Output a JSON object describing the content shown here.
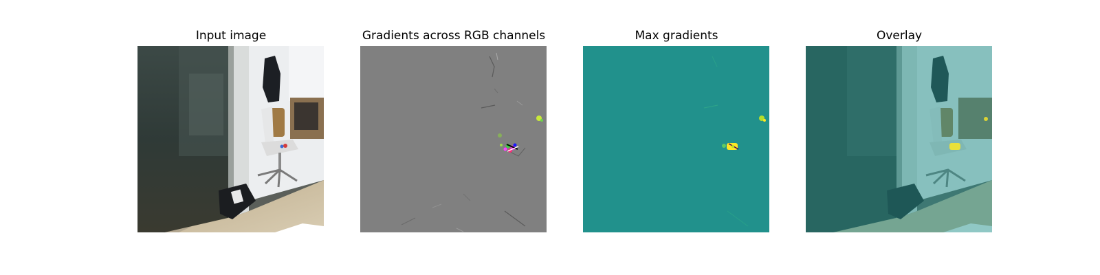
{
  "figure": {
    "panels": [
      {
        "id": "input",
        "title": "Input image"
      },
      {
        "id": "gradients",
        "title": "Gradients across RGB channels"
      },
      {
        "id": "max",
        "title": "Max gradients"
      },
      {
        "id": "overlay",
        "title": "Overlay"
      }
    ],
    "colors": {
      "gradient_bg": "#808080",
      "max_bg": "#21918c",
      "max_highlight": "#fde725",
      "overlay_tint": "#21918c"
    }
  }
}
